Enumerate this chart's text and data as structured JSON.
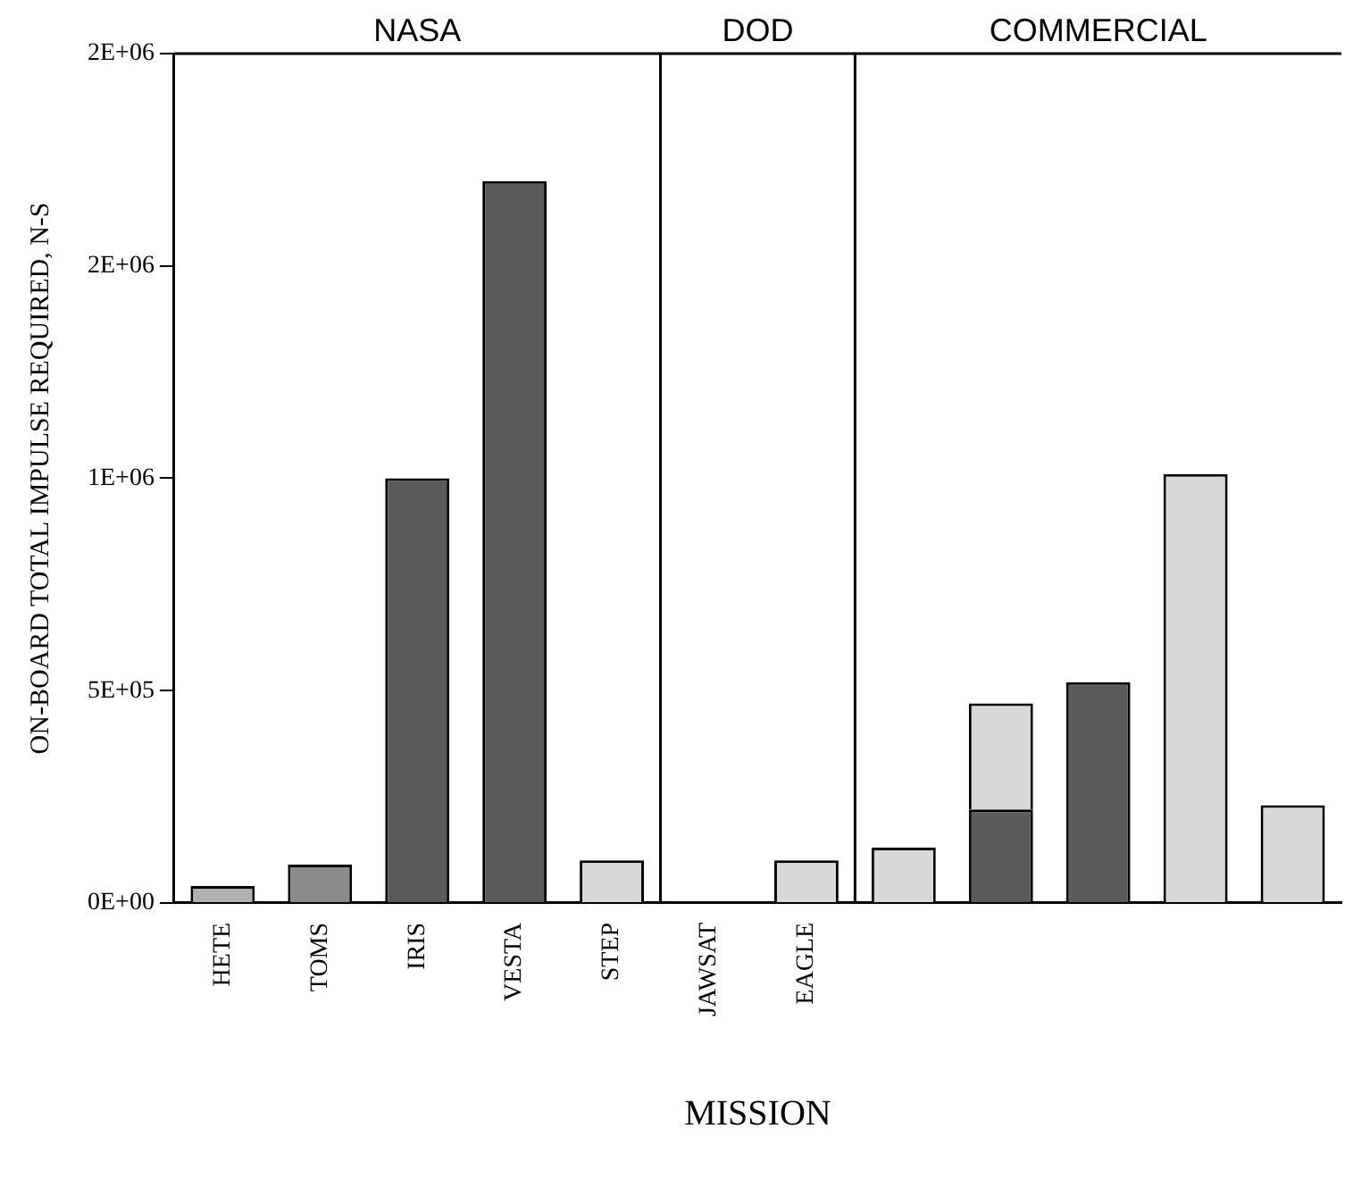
{
  "chart_data": {
    "type": "bar",
    "stacked": true,
    "xlabel": "MISSION",
    "ylabel": "ON-BOARD TOTAL IMPULSE REQUIRED, N-S",
    "categories": [
      "HETE",
      "TOMS",
      "IRIS",
      "VESTA",
      "STEP",
      "JAWSAT",
      "EAGLE",
      null,
      null,
      null,
      null,
      null
    ],
    "series": [
      {
        "colors": [
          "#b0b0b0",
          "#8a8a8a",
          "#5a5a5a",
          "#5a5a5a",
          "#d8d8d8",
          "#d8d8d8",
          "#d8d8d8",
          "#d8d8d8",
          "#5a5a5a",
          "#5a5a5a",
          "#d8d8d8",
          "#d8d8d8"
        ],
        "values": [
          40000,
          90000,
          1000000,
          1700000,
          100000,
          0,
          100000,
          130000,
          220000,
          520000,
          1010000,
          230000
        ]
      },
      {
        "color": "#d8d8d8",
        "values": [
          null,
          null,
          null,
          null,
          null,
          null,
          null,
          null,
          250000,
          null,
          null,
          null
        ]
      }
    ],
    "ylim": [
      0,
      2000000
    ],
    "yticks": [
      {
        "value": 0,
        "label": "0E+00"
      },
      {
        "value": 500000,
        "label": "5E+05"
      },
      {
        "value": 1000000,
        "label": "1E+06"
      },
      {
        "value": 1500000,
        "label": "2E+06"
      },
      {
        "value": 2000000,
        "label": "2E+06"
      }
    ],
    "grid": false,
    "legend": false,
    "annotations": [
      "NASA",
      "DOD",
      "COMMERCIAL"
    ]
  }
}
